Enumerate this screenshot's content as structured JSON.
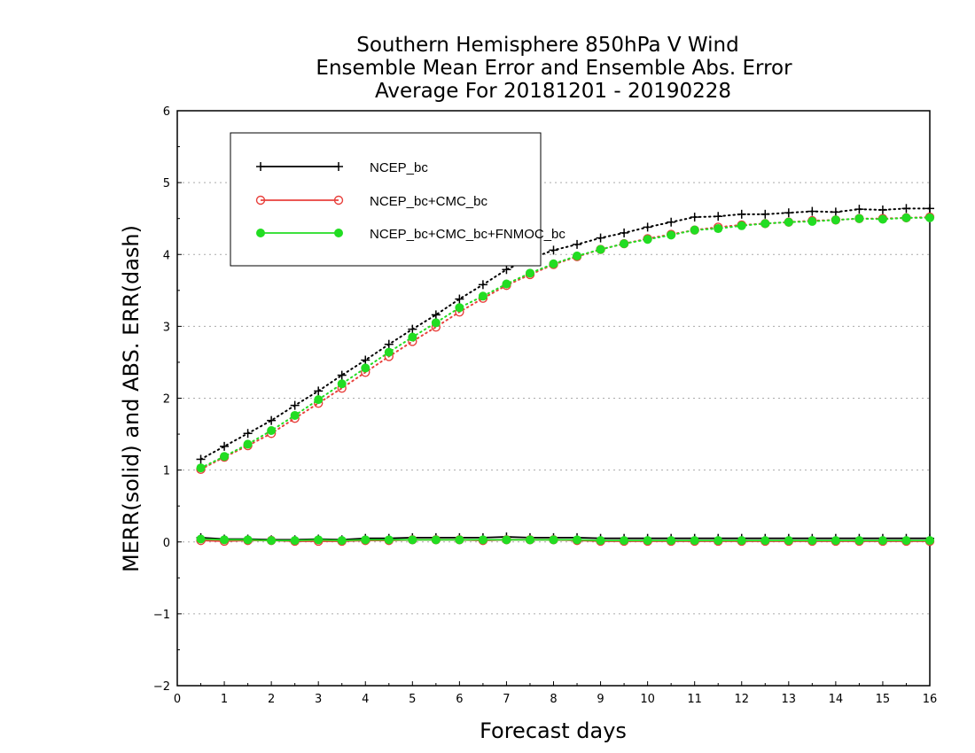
{
  "chart_data": {
    "type": "line",
    "title": [
      "Southern Hemisphere 850hPa V Wind",
      "Ensemble Mean Error and Ensemble Abs. Error",
      "Average For 20181201 - 20190228"
    ],
    "xlabel": "Forecast days",
    "ylabel": "MERR(solid) and ABS. ERR(dash)",
    "xlim": [
      0,
      16
    ],
    "ylim": [
      -2,
      6
    ],
    "xticks": [
      "0",
      "1",
      "2",
      "3",
      "4",
      "5",
      "6",
      "7",
      "8",
      "9",
      "10",
      "11",
      "12",
      "13",
      "14",
      "15",
      "16"
    ],
    "yticks": [
      "6",
      "5",
      "4",
      "3",
      "2",
      "1",
      "0",
      "−1",
      "−2"
    ],
    "grid": "horizontal dotted",
    "legend_position": "top-left",
    "x": [
      0.5,
      1,
      1.5,
      2,
      2.5,
      3,
      3.5,
      4,
      4.5,
      5,
      5.5,
      6,
      6.5,
      7,
      7.5,
      8,
      8.5,
      9,
      9.5,
      10,
      10.5,
      11,
      11.5,
      12,
      12.5,
      13,
      13.5,
      14,
      14.5,
      15,
      15.5,
      16
    ],
    "series": [
      {
        "name": "NCEP_bc",
        "color": "#000000",
        "marker": "plus",
        "abs_err": [
          1.15,
          1.33,
          1.51,
          1.69,
          1.9,
          2.1,
          2.32,
          2.53,
          2.75,
          2.96,
          3.16,
          3.38,
          3.58,
          3.79,
          3.94,
          4.06,
          4.14,
          4.23,
          4.3,
          4.38,
          4.45,
          4.52,
          4.53,
          4.56,
          4.56,
          4.58,
          4.6,
          4.59,
          4.63,
          4.62,
          4.64,
          4.64
        ],
        "mean_err": [
          0.06,
          0.04,
          0.04,
          0.03,
          0.03,
          0.04,
          0.03,
          0.05,
          0.05,
          0.06,
          0.06,
          0.06,
          0.06,
          0.07,
          0.06,
          0.06,
          0.06,
          0.05,
          0.05,
          0.05,
          0.05,
          0.05,
          0.05,
          0.05,
          0.05,
          0.05,
          0.05,
          0.05,
          0.05,
          0.05,
          0.05,
          0.05
        ]
      },
      {
        "name": "NCEP_bc+CMC_bc",
        "color": "#e8403c",
        "marker": "open-circle",
        "abs_err": [
          1.01,
          1.18,
          1.34,
          1.51,
          1.72,
          1.93,
          2.14,
          2.36,
          2.58,
          2.79,
          2.99,
          3.2,
          3.39,
          3.57,
          3.72,
          3.86,
          3.97,
          4.07,
          4.15,
          4.22,
          4.28,
          4.34,
          4.38,
          4.41,
          4.43,
          4.45,
          4.47,
          4.48,
          4.5,
          4.5,
          4.51,
          4.52
        ],
        "mean_err": [
          0.02,
          0.01,
          0.02,
          0.02,
          0.01,
          0.01,
          0.01,
          0.02,
          0.02,
          0.03,
          0.03,
          0.03,
          0.02,
          0.03,
          0.03,
          0.03,
          0.02,
          0.01,
          0.01,
          0.01,
          0.01,
          0.01,
          0.01,
          0.01,
          0.01,
          0.01,
          0.01,
          0.01,
          0.01,
          0.01,
          0.01,
          0.01
        ]
      },
      {
        "name": "NCEP_bc+CMC_bc+FNMOC_bc",
        "color": "#22dd22",
        "marker": "filled-circle",
        "abs_err": [
          1.03,
          1.19,
          1.36,
          1.55,
          1.76,
          1.98,
          2.2,
          2.42,
          2.64,
          2.85,
          3.05,
          3.26,
          3.42,
          3.59,
          3.74,
          3.87,
          3.98,
          4.07,
          4.15,
          4.21,
          4.27,
          4.34,
          4.36,
          4.4,
          4.43,
          4.45,
          4.46,
          4.48,
          4.5,
          4.49,
          4.51,
          4.51
        ],
        "mean_err": [
          0.04,
          0.03,
          0.03,
          0.02,
          0.02,
          0.03,
          0.02,
          0.03,
          0.03,
          0.03,
          0.03,
          0.03,
          0.03,
          0.03,
          0.03,
          0.03,
          0.03,
          0.02,
          0.02,
          0.02,
          0.02,
          0.02,
          0.02,
          0.02,
          0.02,
          0.02,
          0.02,
          0.02,
          0.02,
          0.02,
          0.02,
          0.02
        ]
      }
    ]
  }
}
